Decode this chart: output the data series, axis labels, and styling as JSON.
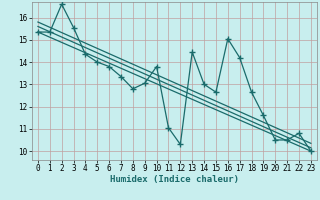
{
  "bg_color": "#c8eeee",
  "grid_color_major": "#c8a0a0",
  "grid_color_minor": "#c8b4b4",
  "line_color": "#1a6b6b",
  "x_label": "Humidex (Indice chaleur)",
  "xlim": [
    -0.5,
    23.5
  ],
  "ylim": [
    9.6,
    16.7
  ],
  "x_ticks": [
    0,
    1,
    2,
    3,
    4,
    5,
    6,
    7,
    8,
    9,
    10,
    11,
    12,
    13,
    14,
    15,
    16,
    17,
    18,
    19,
    20,
    21,
    22,
    23
  ],
  "y_ticks": [
    10,
    11,
    12,
    13,
    14,
    15,
    16
  ],
  "zigzag_x": [
    0,
    1,
    2,
    3,
    4,
    5,
    6,
    7,
    8,
    9,
    10,
    11,
    12,
    13,
    14,
    15,
    16,
    17,
    18,
    19,
    20,
    21,
    22,
    23
  ],
  "zigzag_y": [
    15.35,
    15.35,
    16.6,
    15.55,
    14.35,
    14.0,
    13.8,
    13.35,
    12.8,
    13.05,
    13.8,
    11.05,
    10.3,
    14.45,
    13.0,
    12.65,
    15.05,
    14.2,
    12.65,
    11.6,
    10.5,
    10.5,
    10.8,
    10.0
  ],
  "trend1_x": [
    0,
    23
  ],
  "trend1_y": [
    15.35,
    10.0
  ],
  "trend2_x": [
    0,
    23
  ],
  "trend2_y": [
    15.6,
    10.15
  ],
  "trend3_x": [
    0,
    23
  ],
  "trend3_y": [
    15.8,
    10.35
  ]
}
